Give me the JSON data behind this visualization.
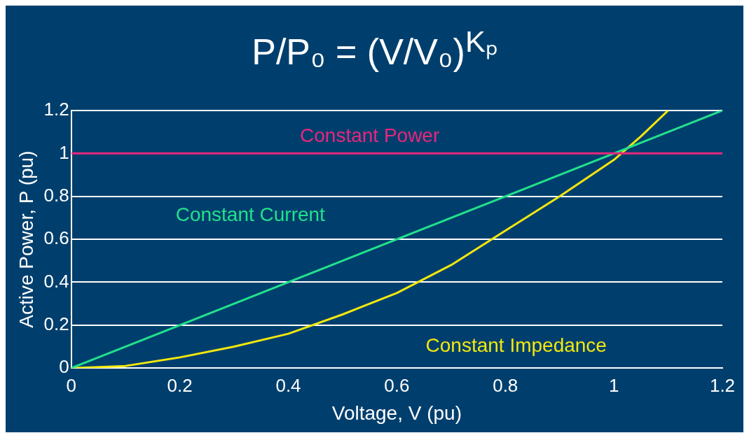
{
  "chart_data": {
    "type": "line",
    "title": "P/P₀ = (V/V₀)$^{Kₚ}$",
    "xlabel": "Voltage, V (pu)",
    "ylabel": "Active Power, P (pu)",
    "xlim": [
      0,
      1.2
    ],
    "xticks": [
      0,
      0.2,
      0.4,
      0.6,
      0.8,
      1,
      1.2
    ],
    "ylim": [
      0,
      1.2
    ],
    "yticks": [
      0,
      0.2,
      0.4,
      0.6,
      0.8,
      1,
      1.2
    ],
    "grid": "y",
    "legend": false,
    "marker": "none",
    "line_style": "solid",
    "series": [
      {
        "name": "Constant Power",
        "color": "#e8267c",
        "x": [
          0,
          1.2
        ],
        "values": [
          1,
          1
        ]
      },
      {
        "name": "Constant Current",
        "color": "#22e08c",
        "x": [
          0,
          1.2
        ],
        "values": [
          0,
          1.2
        ]
      },
      {
        "name": "Constant Impedance",
        "color": "#f2e70e",
        "x": [
          0,
          0.1,
          0.2,
          0.3,
          0.4,
          0.5,
          0.6,
          0.7,
          0.8,
          0.9,
          1,
          1.05,
          1.1
        ],
        "values": [
          0,
          0.01,
          0.05,
          0.1,
          0.16,
          0.25,
          0.35,
          0.48,
          0.64,
          0.8,
          0.97,
          1.08,
          1.2
        ]
      }
    ]
  }
}
